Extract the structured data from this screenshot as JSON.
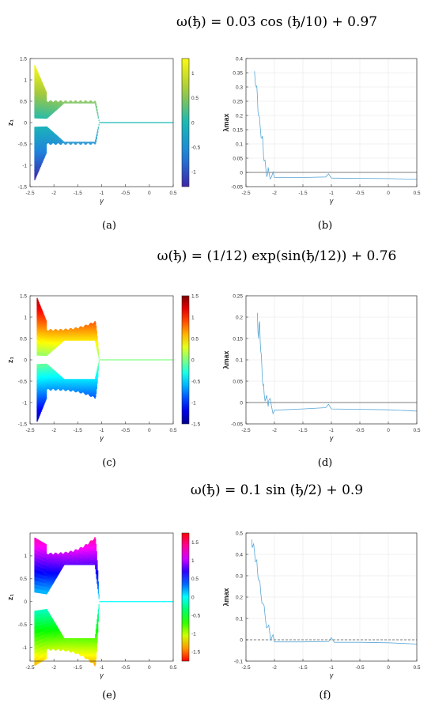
{
  "rows": [
    {
      "formula": "ω(ђ) = 0.03 cos (ђ/10) + 0.97",
      "captions": [
        "(a)",
        "(b)"
      ]
    },
    {
      "formula": "ω(ђ) = (1/12) exp(sin(ђ/12)) + 0.76",
      "captions": [
        "(c)",
        "(d)"
      ]
    },
    {
      "formula": "ω(ђ) = 0.1 sin (ђ/2) + 0.9",
      "captions": [
        "(e)",
        "(f)"
      ]
    }
  ],
  "chart_data": [
    {
      "id": "a",
      "type": "scatter",
      "xlabel": "γ",
      "ylabel": "z₁",
      "xlim": [
        -2.5,
        0.5
      ],
      "ylim": [
        -1.5,
        1.5
      ],
      "xticks": [
        "-2.5",
        "-2",
        "-1.5",
        "-1",
        "-0.5",
        "0",
        "0.5"
      ],
      "yticks": [
        "-1.5",
        "-1",
        "-0.5",
        "0",
        "0.5",
        "1",
        "1.5"
      ],
      "colormap": "parula",
      "colorbar_ticks": [
        "1",
        "0.5",
        "0",
        "-0.5",
        "-1"
      ],
      "colorbar_range": [
        -1.3,
        1.3
      ],
      "branch": {
        "start": -2.4,
        "split": -2.15,
        "end": -1.05,
        "outer_start": 1.35,
        "inner_start": 0.1,
        "outer_mid": 0.5,
        "inner_mid": 0.45
      },
      "grid": false
    },
    {
      "id": "b",
      "type": "line",
      "xlabel": "γ",
      "ylabel": "λmax",
      "xlim": [
        -2.5,
        0.5
      ],
      "ylim": [
        -0.05,
        0.4
      ],
      "xticks": [
        "-2.5",
        "-2",
        "-1.5",
        "-1",
        "-0.5",
        "0",
        "0.5"
      ],
      "yticks": [
        "-0.05",
        "0",
        "0.05",
        "0.1",
        "0.15",
        "0.2",
        "0.25",
        "0.3",
        "0.35",
        "0.4"
      ],
      "series": [
        {
          "x": [
            -2.35,
            -2.32,
            -2.3,
            -2.28,
            -2.25,
            -2.22,
            -2.2,
            -2.18,
            -2.15,
            -2.12,
            -2.1,
            -2.05,
            -2.0,
            -1.5,
            -1.1,
            -1.05,
            -1.0,
            -0.5,
            0.0,
            0.5
          ],
          "y": [
            0.355,
            0.3,
            0.27,
            0.2,
            0.16,
            0.12,
            0.1,
            0.04,
            0.01,
            -0.005,
            0.005,
            -0.015,
            -0.018,
            -0.018,
            -0.016,
            -0.005,
            -0.02,
            -0.021,
            -0.022,
            -0.024
          ]
        }
      ],
      "zero_line": 0,
      "grid": true
    },
    {
      "id": "c",
      "type": "scatter",
      "xlabel": "γ",
      "ylabel": "z₁",
      "xlim": [
        -2.5,
        0.5
      ],
      "ylim": [
        -1.5,
        1.5
      ],
      "xticks": [
        "-2.5",
        "-2",
        "-1.5",
        "-1",
        "-0.5",
        "0",
        "0.5"
      ],
      "yticks": [
        "-1.5",
        "-1",
        "-0.5",
        "0",
        "0.5",
        "1",
        "1.5"
      ],
      "colormap": "jet",
      "colorbar_ticks": [
        "1.5",
        "1",
        "0.5",
        "0",
        "-0.5",
        "-1",
        "-1.5"
      ],
      "colorbar_range": [
        -1.5,
        1.5
      ],
      "branch": {
        "start": -2.35,
        "split": -2.15,
        "end": -1.05,
        "outer_start": 1.45,
        "inner_start": 0.1,
        "outer_mid": 0.7,
        "inner_mid": 0.45,
        "outer_end": 0.95
      },
      "grid": false
    },
    {
      "id": "d",
      "type": "line",
      "xlabel": "γ",
      "ylabel": "λmax",
      "xlim": [
        -2.5,
        0.5
      ],
      "ylim": [
        -0.05,
        0.25
      ],
      "xticks": [
        "-2.5",
        "-2",
        "-1.5",
        "-1",
        "-0.5",
        "0",
        "0.5"
      ],
      "yticks": [
        "-0.05",
        "0",
        "0.05",
        "0.1",
        "0.15",
        "0.2",
        "0.25"
      ],
      "series": [
        {
          "x": [
            -2.3,
            -2.28,
            -2.26,
            -2.24,
            -2.22,
            -2.2,
            -2.18,
            -2.15,
            -2.12,
            -2.1,
            -2.05,
            -2.0,
            -1.5,
            -1.1,
            -1.05,
            -1.0,
            -0.5,
            0.0,
            0.5
          ],
          "y": [
            0.21,
            0.15,
            0.19,
            0.12,
            0.08,
            0.04,
            0.02,
            0.01,
            0.0,
            0.005,
            -0.01,
            -0.018,
            -0.015,
            -0.012,
            -0.004,
            -0.015,
            -0.016,
            -0.017,
            -0.02
          ]
        }
      ],
      "zero_line": 0,
      "grid": true
    },
    {
      "id": "e",
      "type": "scatter",
      "xlabel": "γ",
      "ylabel": "z₁",
      "xlim": [
        -2.5,
        0.5
      ],
      "ylim": [
        -1.3,
        1.5
      ],
      "xticks": [
        "-2.5",
        "-2",
        "-1.5",
        "-1",
        "-0.5",
        "0",
        "0.5"
      ],
      "yticks": [
        "-1",
        "-0.5",
        "0",
        "0.5",
        "1"
      ],
      "colormap": "hsv",
      "colorbar_ticks": [
        "1.5",
        "1",
        "0.5",
        "0",
        "-0.5",
        "-1",
        "-1.5"
      ],
      "colorbar_range": [
        -1.75,
        1.75
      ],
      "branch": {
        "start": -2.4,
        "split": -2.15,
        "end": -1.05,
        "outer_start": 1.4,
        "inner_start": 0.2,
        "outer_mid": 1.05,
        "inner_mid": 0.8,
        "outer_end": 1.5
      },
      "grid": false
    },
    {
      "id": "f",
      "type": "line",
      "xlabel": "γ",
      "ylabel": "λmax",
      "xlim": [
        -2.5,
        0.5
      ],
      "ylim": [
        -0.1,
        0.5
      ],
      "xticks": [
        "-2.5",
        "-2",
        "-1.5",
        "-1",
        "-0.5",
        "0",
        "0.5"
      ],
      "yticks": [
        "-0.1",
        "0",
        "0.1",
        "0.2",
        "0.3",
        "0.4",
        "0.5"
      ],
      "series": [
        {
          "x": [
            -2.4,
            -2.38,
            -2.35,
            -2.32,
            -2.3,
            -2.27,
            -2.24,
            -2.2,
            -2.16,
            -2.12,
            -2.08,
            -2.05,
            -2.0,
            -1.5,
            -1.05,
            -1.0,
            -0.95,
            -0.5,
            0.0,
            0.5
          ],
          "y": [
            0.47,
            0.44,
            0.41,
            0.37,
            0.33,
            0.28,
            0.22,
            0.17,
            0.1,
            0.06,
            0.03,
            0.01,
            -0.01,
            -0.01,
            -0.008,
            0.01,
            -0.012,
            -0.012,
            -0.014,
            -0.02
          ]
        }
      ],
      "zero_line": 0,
      "zero_dashed": true,
      "grid": true
    }
  ]
}
